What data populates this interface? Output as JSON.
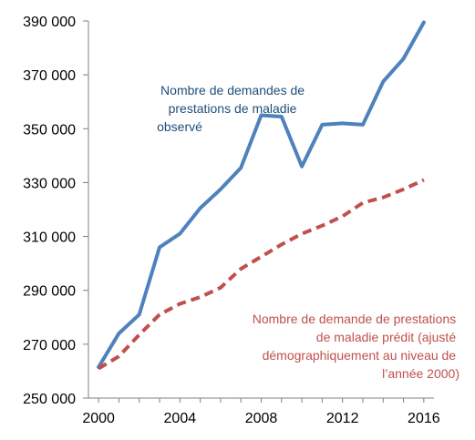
{
  "chart_data": {
    "type": "line",
    "x": [
      2000,
      2001,
      2002,
      2003,
      2004,
      2005,
      2006,
      2007,
      2008,
      2009,
      2010,
      2011,
      2012,
      2013,
      2014,
      2015,
      2016
    ],
    "series": [
      {
        "name": "Nombre de demandes de prestations de maladie observé",
        "color": "#4F81BD",
        "style": "solid",
        "values": [
          261500,
          274000,
          281000,
          306000,
          311000,
          320500,
          327500,
          335500,
          355000,
          354500,
          336000,
          351500,
          352000,
          351500,
          367500,
          376000,
          389500
        ]
      },
      {
        "name": "Nombre de demande de prestations de maladie prédit (ajusté démographiquement au niveau de l'année 2000)",
        "color": "#C0504D",
        "style": "dashed",
        "values": [
          261000,
          265500,
          273500,
          281000,
          285000,
          287500,
          291000,
          298000,
          302500,
          307000,
          311000,
          314000,
          317500,
          322500,
          324500,
          327500,
          331000
        ]
      }
    ],
    "ylim": [
      250000,
      390000
    ],
    "yticks": [
      250000,
      270000,
      290000,
      310000,
      330000,
      350000,
      370000,
      390000
    ],
    "ytick_labels": [
      "250 000",
      "270 000",
      "290 000",
      "310 000",
      "330 000",
      "350 000",
      "370 000",
      "390 000"
    ],
    "xlim": [
      1999.5,
      2016.5
    ],
    "xticks": [
      2000,
      2004,
      2008,
      2012,
      2016
    ],
    "xtick_labels": [
      "2000",
      "2004",
      "2008",
      "2012",
      "2016"
    ],
    "grid": false,
    "annotations": {
      "observed": [
        "Nombre de demandes  de",
        "prestations  de maladie",
        "observé"
      ],
      "predicted": [
        "Nombre de demande  de prestations",
        "de maladie  prédit (ajusté",
        "démographiquement  au niveau de",
        "l’année 2000)"
      ]
    }
  }
}
